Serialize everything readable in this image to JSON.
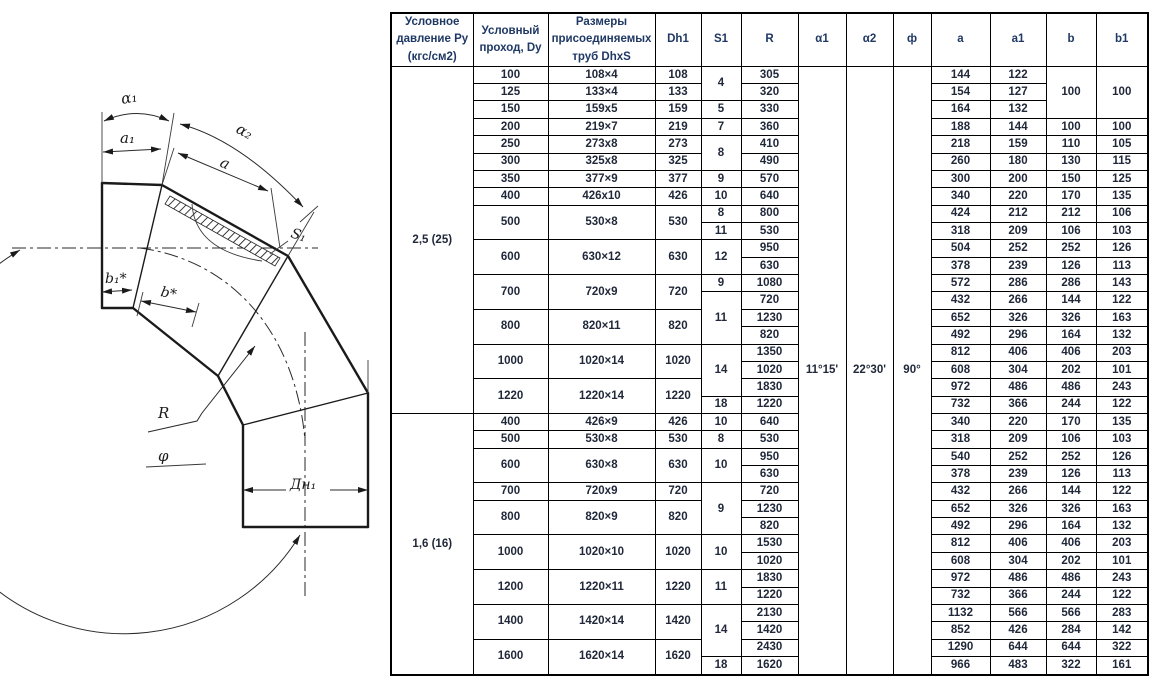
{
  "drawing": {
    "labels": {
      "alpha1": "α₁",
      "alpha2": "α₂",
      "a": "a",
      "a1": "a₁",
      "s1": "S₁",
      "b1": "b₁*",
      "b": "b*",
      "r": "R",
      "phi": "φ",
      "dn1": "Дн₁"
    }
  },
  "table": {
    "headers": [
      "Условное давление Ру (кгс/см2)",
      "Условный проход, Dy",
      "Размеры присоединяемых труб DhxS",
      "Dh1",
      "S1",
      "R",
      "α1",
      "α2",
      "ф",
      "a",
      "a1",
      "b",
      "b1"
    ],
    "angles": {
      "alpha1": "11°15'",
      "alpha2": "22°30'",
      "phi": "90°"
    },
    "rows": [
      [
        {
          "k": "p",
          "t": "2,5 (25)",
          "rs": 20
        },
        {
          "k": "dy",
          "t": "100"
        },
        {
          "k": "size",
          "t": "108×4"
        },
        {
          "k": "dh1",
          "t": "108"
        },
        {
          "k": "s1",
          "t": "4",
          "rs": 2
        },
        {
          "k": "r",
          "t": "305"
        },
        {
          "k": "alpha1",
          "t": "11°15'",
          "rs": 35
        },
        {
          "k": "alpha2",
          "t": "22°30'",
          "rs": 35
        },
        {
          "k": "phi",
          "t": "90°",
          "rs": 35
        },
        {
          "k": "a",
          "t": "144"
        },
        {
          "k": "a1",
          "t": "122"
        },
        {
          "k": "b",
          "t": "100",
          "rs": 3
        },
        {
          "k": "b1",
          "t": "100",
          "rs": 3
        }
      ],
      [
        {
          "k": "dy",
          "t": "125"
        },
        {
          "k": "size",
          "t": "133×4"
        },
        {
          "k": "dh1",
          "t": "133"
        },
        {
          "k": "r",
          "t": "320"
        },
        {
          "k": "a",
          "t": "154"
        },
        {
          "k": "a1",
          "t": "127"
        }
      ],
      [
        {
          "k": "dy",
          "t": "150"
        },
        {
          "k": "size",
          "t": "159x5"
        },
        {
          "k": "dh1",
          "t": "159"
        },
        {
          "k": "s1",
          "t": "5"
        },
        {
          "k": "r",
          "t": "330"
        },
        {
          "k": "a",
          "t": "164"
        },
        {
          "k": "a1",
          "t": "132"
        }
      ],
      [
        {
          "k": "dy",
          "t": "200"
        },
        {
          "k": "size",
          "t": "219×7"
        },
        {
          "k": "dh1",
          "t": "219"
        },
        {
          "k": "s1",
          "t": "7"
        },
        {
          "k": "r",
          "t": "360"
        },
        {
          "k": "a",
          "t": "188"
        },
        {
          "k": "a1",
          "t": "144"
        },
        {
          "k": "b",
          "t": "100"
        },
        {
          "k": "b1",
          "t": "100"
        }
      ],
      [
        {
          "k": "dy",
          "t": "250"
        },
        {
          "k": "size",
          "t": "273x8"
        },
        {
          "k": "dh1",
          "t": "273"
        },
        {
          "k": "s1",
          "t": "8",
          "rs": 2
        },
        {
          "k": "r",
          "t": "410"
        },
        {
          "k": "a",
          "t": "218"
        },
        {
          "k": "a1",
          "t": "159"
        },
        {
          "k": "b",
          "t": "110"
        },
        {
          "k": "b1",
          "t": "105"
        }
      ],
      [
        {
          "k": "dy",
          "t": "300"
        },
        {
          "k": "size",
          "t": "325x8"
        },
        {
          "k": "dh1",
          "t": "325"
        },
        {
          "k": "r",
          "t": "490"
        },
        {
          "k": "a",
          "t": "260"
        },
        {
          "k": "a1",
          "t": "180"
        },
        {
          "k": "b",
          "t": "130"
        },
        {
          "k": "b1",
          "t": "115"
        }
      ],
      [
        {
          "k": "dy",
          "t": "350"
        },
        {
          "k": "size",
          "t": "377×9"
        },
        {
          "k": "dh1",
          "t": "377"
        },
        {
          "k": "s1",
          "t": "9"
        },
        {
          "k": "r",
          "t": "570"
        },
        {
          "k": "a",
          "t": "300"
        },
        {
          "k": "a1",
          "t": "200"
        },
        {
          "k": "b",
          "t": "150"
        },
        {
          "k": "b1",
          "t": "125"
        }
      ],
      [
        {
          "k": "dy",
          "t": "400"
        },
        {
          "k": "size",
          "t": "426x10"
        },
        {
          "k": "dh1",
          "t": "426"
        },
        {
          "k": "s1",
          "t": "10"
        },
        {
          "k": "r",
          "t": "640"
        },
        {
          "k": "a",
          "t": "340"
        },
        {
          "k": "a1",
          "t": "220"
        },
        {
          "k": "b",
          "t": "170"
        },
        {
          "k": "b1",
          "t": "135"
        }
      ],
      [
        {
          "k": "dy",
          "t": "500",
          "rs": 2
        },
        {
          "k": "size",
          "t": "530×8",
          "rs": 2
        },
        {
          "k": "dh1",
          "t": "530",
          "rs": 2
        },
        {
          "k": "s1",
          "t": "8"
        },
        {
          "k": "r",
          "t": "800"
        },
        {
          "k": "a",
          "t": "424"
        },
        {
          "k": "a1",
          "t": "212"
        },
        {
          "k": "b",
          "t": "212"
        },
        {
          "k": "b1",
          "t": "106"
        }
      ],
      [
        {
          "k": "s1",
          "t": "11"
        },
        {
          "k": "r",
          "t": "530"
        },
        {
          "k": "a",
          "t": "318"
        },
        {
          "k": "a1",
          "t": "209"
        },
        {
          "k": "b",
          "t": "106"
        },
        {
          "k": "b1",
          "t": "103"
        }
      ],
      [
        {
          "k": "dy",
          "t": "600",
          "rs": 2
        },
        {
          "k": "size",
          "t": "630×12",
          "rs": 2
        },
        {
          "k": "dh1",
          "t": "630",
          "rs": 2
        },
        {
          "k": "s1",
          "t": "12",
          "rs": 2
        },
        {
          "k": "r",
          "t": "950"
        },
        {
          "k": "a",
          "t": "504"
        },
        {
          "k": "a1",
          "t": "252"
        },
        {
          "k": "b",
          "t": "252"
        },
        {
          "k": "b1",
          "t": "126"
        }
      ],
      [
        {
          "k": "r",
          "t": "630"
        },
        {
          "k": "a",
          "t": "378"
        },
        {
          "k": "a1",
          "t": "239"
        },
        {
          "k": "b",
          "t": "126"
        },
        {
          "k": "b1",
          "t": "113"
        }
      ],
      [
        {
          "k": "dy",
          "t": "700",
          "rs": 2
        },
        {
          "k": "size",
          "t": "720x9",
          "rs": 2
        },
        {
          "k": "dh1",
          "t": "720",
          "rs": 2
        },
        {
          "k": "s1",
          "t": "9"
        },
        {
          "k": "r",
          "t": "1080"
        },
        {
          "k": "a",
          "t": "572"
        },
        {
          "k": "a1",
          "t": "286"
        },
        {
          "k": "b",
          "t": "286"
        },
        {
          "k": "b1",
          "t": "143"
        }
      ],
      [
        {
          "k": "s1",
          "t": "11",
          "rs": 3
        },
        {
          "k": "r",
          "t": "720"
        },
        {
          "k": "a",
          "t": "432"
        },
        {
          "k": "a1",
          "t": "266"
        },
        {
          "k": "b",
          "t": "144"
        },
        {
          "k": "b1",
          "t": "122"
        }
      ],
      [
        {
          "k": "dy",
          "t": "800",
          "rs": 2
        },
        {
          "k": "size",
          "t": "820×11",
          "rs": 2
        },
        {
          "k": "dh1",
          "t": "820",
          "rs": 2
        },
        {
          "k": "r",
          "t": "1230"
        },
        {
          "k": "a",
          "t": "652"
        },
        {
          "k": "a1",
          "t": "326"
        },
        {
          "k": "b",
          "t": "326"
        },
        {
          "k": "b1",
          "t": "163"
        }
      ],
      [
        {
          "k": "r",
          "t": "820"
        },
        {
          "k": "a",
          "t": "492"
        },
        {
          "k": "a1",
          "t": "296"
        },
        {
          "k": "b",
          "t": "164"
        },
        {
          "k": "b1",
          "t": "132"
        }
      ],
      [
        {
          "k": "dy",
          "t": "1000",
          "rs": 2
        },
        {
          "k": "size",
          "t": "1020×14",
          "rs": 2
        },
        {
          "k": "dh1",
          "t": "1020",
          "rs": 2
        },
        {
          "k": "s1",
          "t": "14",
          "rs": 3
        },
        {
          "k": "r",
          "t": "1350"
        },
        {
          "k": "a",
          "t": "812"
        },
        {
          "k": "a1",
          "t": "406"
        },
        {
          "k": "b",
          "t": "406"
        },
        {
          "k": "b1",
          "t": "203"
        }
      ],
      [
        {
          "k": "r",
          "t": "1020"
        },
        {
          "k": "a",
          "t": "608"
        },
        {
          "k": "a1",
          "t": "304"
        },
        {
          "k": "b",
          "t": "202"
        },
        {
          "k": "b1",
          "t": "101"
        }
      ],
      [
        {
          "k": "dy",
          "t": "1220",
          "rs": 2
        },
        {
          "k": "size",
          "t": "1220×14",
          "rs": 2
        },
        {
          "k": "dh1",
          "t": "1220",
          "rs": 2
        },
        {
          "k": "r",
          "t": "1830"
        },
        {
          "k": "a",
          "t": "972"
        },
        {
          "k": "a1",
          "t": "486"
        },
        {
          "k": "b",
          "t": "486"
        },
        {
          "k": "b1",
          "t": "243"
        }
      ],
      [
        {
          "k": "s1",
          "t": "18"
        },
        {
          "k": "r",
          "t": "1220"
        },
        {
          "k": "a",
          "t": "732"
        },
        {
          "k": "a1",
          "t": "366"
        },
        {
          "k": "b",
          "t": "244"
        },
        {
          "k": "b1",
          "t": "122"
        }
      ],
      [
        {
          "k": "p",
          "t": "1,6 (16)",
          "rs": 15
        },
        {
          "k": "dy",
          "t": "400"
        },
        {
          "k": "size",
          "t": "426×9"
        },
        {
          "k": "dh1",
          "t": "426"
        },
        {
          "k": "s1",
          "t": "10"
        },
        {
          "k": "r",
          "t": "640"
        },
        {
          "k": "a",
          "t": "340"
        },
        {
          "k": "a1",
          "t": "220"
        },
        {
          "k": "b",
          "t": "170"
        },
        {
          "k": "b1",
          "t": "135"
        }
      ],
      [
        {
          "k": "dy",
          "t": "500"
        },
        {
          "k": "size",
          "t": "530×8"
        },
        {
          "k": "dh1",
          "t": "530"
        },
        {
          "k": "s1",
          "t": "8"
        },
        {
          "k": "r",
          "t": "530"
        },
        {
          "k": "a",
          "t": "318"
        },
        {
          "k": "a1",
          "t": "209"
        },
        {
          "k": "b",
          "t": "106"
        },
        {
          "k": "b1",
          "t": "103"
        }
      ],
      [
        {
          "k": "dy",
          "t": "600",
          "rs": 2
        },
        {
          "k": "size",
          "t": "630×8",
          "rs": 2
        },
        {
          "k": "dh1",
          "t": "630",
          "rs": 2
        },
        {
          "k": "s1",
          "t": "10",
          "rs": 2
        },
        {
          "k": "r",
          "t": "950"
        },
        {
          "k": "a",
          "t": "540"
        },
        {
          "k": "a1",
          "t": "252"
        },
        {
          "k": "b",
          "t": "252"
        },
        {
          "k": "b1",
          "t": "126"
        }
      ],
      [
        {
          "k": "r",
          "t": "630"
        },
        {
          "k": "a",
          "t": "378"
        },
        {
          "k": "a1",
          "t": "239"
        },
        {
          "k": "b",
          "t": "126"
        },
        {
          "k": "b1",
          "t": "113"
        }
      ],
      [
        {
          "k": "dy",
          "t": "700"
        },
        {
          "k": "size",
          "t": "720x9"
        },
        {
          "k": "dh1",
          "t": "720"
        },
        {
          "k": "s1",
          "t": "9",
          "rs": 3
        },
        {
          "k": "r",
          "t": "720"
        },
        {
          "k": "a",
          "t": "432"
        },
        {
          "k": "a1",
          "t": "266"
        },
        {
          "k": "b",
          "t": "144"
        },
        {
          "k": "b1",
          "t": "122"
        }
      ],
      [
        {
          "k": "dy",
          "t": "800",
          "rs": 2
        },
        {
          "k": "size",
          "t": "820×9",
          "rs": 2
        },
        {
          "k": "dh1",
          "t": "820",
          "rs": 2
        },
        {
          "k": "r",
          "t": "1230"
        },
        {
          "k": "a",
          "t": "652"
        },
        {
          "k": "a1",
          "t": "326"
        },
        {
          "k": "b",
          "t": "326"
        },
        {
          "k": "b1",
          "t": "163"
        }
      ],
      [
        {
          "k": "r",
          "t": "820"
        },
        {
          "k": "a",
          "t": "492"
        },
        {
          "k": "a1",
          "t": "296"
        },
        {
          "k": "b",
          "t": "164"
        },
        {
          "k": "b1",
          "t": "132"
        }
      ],
      [
        {
          "k": "dy",
          "t": "1000",
          "rs": 2
        },
        {
          "k": "size",
          "t": "1020×10",
          "rs": 2
        },
        {
          "k": "dh1",
          "t": "1020",
          "rs": 2
        },
        {
          "k": "s1",
          "t": "10",
          "rs": 2
        },
        {
          "k": "r",
          "t": "1530"
        },
        {
          "k": "a",
          "t": "812"
        },
        {
          "k": "a1",
          "t": "406"
        },
        {
          "k": "b",
          "t": "406"
        },
        {
          "k": "b1",
          "t": "203"
        }
      ],
      [
        {
          "k": "r",
          "t": "1020"
        },
        {
          "k": "a",
          "t": "608"
        },
        {
          "k": "a1",
          "t": "304"
        },
        {
          "k": "b",
          "t": "202"
        },
        {
          "k": "b1",
          "t": "101"
        }
      ],
      [
        {
          "k": "dy",
          "t": "1200",
          "rs": 2
        },
        {
          "k": "size",
          "t": "1220×11",
          "rs": 2
        },
        {
          "k": "dh1",
          "t": "1220",
          "rs": 2
        },
        {
          "k": "s1",
          "t": "11",
          "rs": 2
        },
        {
          "k": "r",
          "t": "1830"
        },
        {
          "k": "a",
          "t": "972"
        },
        {
          "k": "a1",
          "t": "486"
        },
        {
          "k": "b",
          "t": "486"
        },
        {
          "k": "b1",
          "t": "243"
        }
      ],
      [
        {
          "k": "r",
          "t": "1220"
        },
        {
          "k": "a",
          "t": "732"
        },
        {
          "k": "a1",
          "t": "366"
        },
        {
          "k": "b",
          "t": "244"
        },
        {
          "k": "b1",
          "t": "122"
        }
      ],
      [
        {
          "k": "dy",
          "t": "1400",
          "rs": 2
        },
        {
          "k": "size",
          "t": "1420×14",
          "rs": 2
        },
        {
          "k": "dh1",
          "t": "1420",
          "rs": 2
        },
        {
          "k": "s1",
          "t": "14",
          "rs": 3
        },
        {
          "k": "r",
          "t": "2130"
        },
        {
          "k": "a",
          "t": "1132"
        },
        {
          "k": "a1",
          "t": "566"
        },
        {
          "k": "b",
          "t": "566"
        },
        {
          "k": "b1",
          "t": "283"
        }
      ],
      [
        {
          "k": "r",
          "t": "1420"
        },
        {
          "k": "a",
          "t": "852"
        },
        {
          "k": "a1",
          "t": "426"
        },
        {
          "k": "b",
          "t": "284"
        },
        {
          "k": "b1",
          "t": "142"
        }
      ],
      [
        {
          "k": "dy",
          "t": "1600",
          "rs": 2
        },
        {
          "k": "size",
          "t": "1620×14",
          "rs": 2
        },
        {
          "k": "dh1",
          "t": "1620",
          "rs": 2
        },
        {
          "k": "r",
          "t": "2430"
        },
        {
          "k": "a",
          "t": "1290"
        },
        {
          "k": "a1",
          "t": "644"
        },
        {
          "k": "b",
          "t": "644"
        },
        {
          "k": "b1",
          "t": "322"
        }
      ],
      [
        {
          "k": "s1",
          "t": "18"
        },
        {
          "k": "r",
          "t": "1620"
        },
        {
          "k": "a",
          "t": "966"
        },
        {
          "k": "a1",
          "t": "483"
        },
        {
          "k": "b",
          "t": "322"
        },
        {
          "k": "b1",
          "t": "161"
        }
      ]
    ]
  }
}
